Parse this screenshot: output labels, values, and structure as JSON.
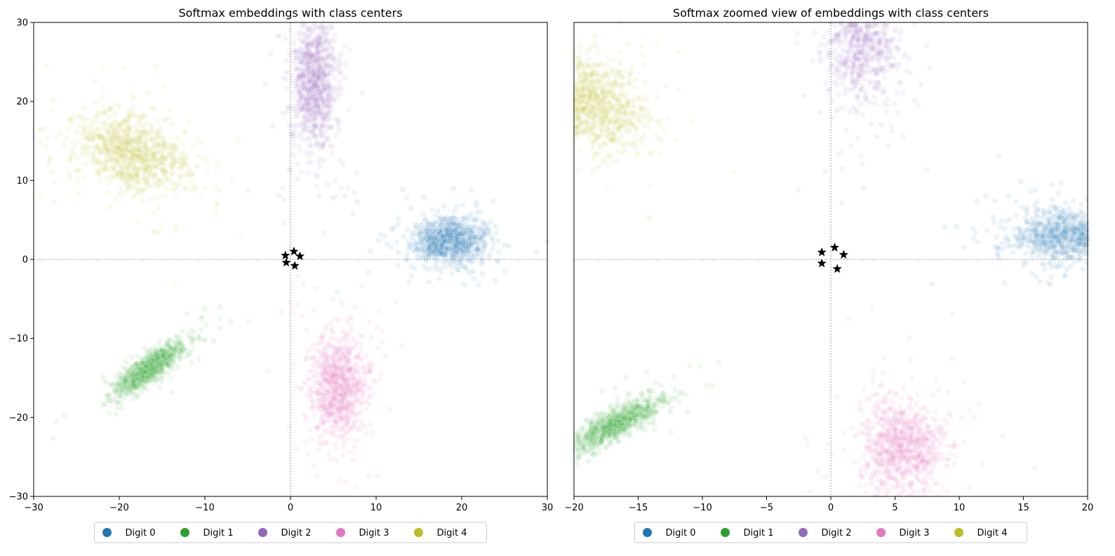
{
  "chart_data": [
    {
      "type": "scatter",
      "title": "Softmax embeddings with class centers",
      "xlim": [
        -30,
        30
      ],
      "ylim": [
        -30,
        30
      ],
      "xticks": [
        -30,
        -20,
        -10,
        0,
        10,
        20,
        30
      ],
      "yticks": [
        -30,
        -20,
        -10,
        0,
        10,
        20,
        30
      ],
      "point_alpha": 0.08,
      "reference_lines": {
        "x": 0,
        "y": 0,
        "style": "dotted"
      },
      "series": [
        {
          "name": "Digit 0",
          "color": "#1f77b4",
          "center": [
            18.5,
            2.3
          ],
          "spread": [
            2.0,
            1.4
          ],
          "corr": 0.0,
          "count": 900
        },
        {
          "name": "Digit 1",
          "color": "#2ca02c",
          "center": [
            -16.5,
            -13.8
          ],
          "spread": [
            1.9,
            1.6
          ],
          "corr": 0.85,
          "count": 900
        },
        {
          "name": "Digit 2",
          "color": "#9467bd",
          "center": [
            2.8,
            22.5
          ],
          "spread": [
            1.3,
            4.2
          ],
          "corr": 0.0,
          "count": 900
        },
        {
          "name": "Digit 3",
          "color": "#e377c2",
          "center": [
            5.5,
            -16.0
          ],
          "spread": [
            1.6,
            3.3
          ],
          "corr": 0.0,
          "count": 900
        },
        {
          "name": "Digit 4",
          "color": "#bcbd22",
          "center": [
            -18.5,
            13.5
          ],
          "spread": [
            3.2,
            2.5
          ],
          "corr": -0.35,
          "count": 900
        }
      ],
      "class_centers": [
        {
          "x": -0.6,
          "y": 0.5
        },
        {
          "x": 0.4,
          "y": 1.0
        },
        {
          "x": 1.1,
          "y": 0.4
        },
        {
          "x": -0.5,
          "y": -0.4
        },
        {
          "x": 0.5,
          "y": -0.8
        }
      ],
      "legend": {
        "placement": "bottom-center",
        "entries": [
          "Digit 0",
          "Digit 1",
          "Digit 2",
          "Digit 3",
          "Digit 4"
        ]
      }
    },
    {
      "type": "scatter",
      "title": "Softmax zoomed view of embeddings with class centers",
      "xlim": [
        -20,
        20
      ],
      "ylim": [
        -30,
        30
      ],
      "xticks": [
        -20,
        -15,
        -10,
        -5,
        0,
        5,
        10,
        15,
        20
      ],
      "yticks": [],
      "point_alpha": 0.08,
      "reference_lines": {
        "x": 0,
        "y": 0,
        "style": "dotted"
      },
      "series": [
        {
          "name": "Digit 0",
          "color": "#1f77b4",
          "center": [
            18.5,
            3.0
          ],
          "spread": [
            2.2,
            1.6
          ],
          "corr": 0.0,
          "count": 900
        },
        {
          "name": "Digit 1",
          "color": "#2ca02c",
          "center": [
            -17.0,
            -21.0
          ],
          "spread": [
            1.8,
            1.7
          ],
          "corr": 0.85,
          "count": 900
        },
        {
          "name": "Digit 2",
          "color": "#9467bd",
          "center": [
            2.5,
            29.0
          ],
          "spread": [
            1.4,
            4.5
          ],
          "corr": 0.0,
          "count": 900
        },
        {
          "name": "Digit 3",
          "color": "#e377c2",
          "center": [
            5.5,
            -24.0
          ],
          "spread": [
            1.6,
            3.2
          ],
          "corr": 0.0,
          "count": 900
        },
        {
          "name": "Digit 4",
          "color": "#bcbd22",
          "center": [
            -18.5,
            20.0
          ],
          "spread": [
            1.9,
            3.0
          ],
          "corr": -0.3,
          "count": 900
        }
      ],
      "class_centers": [
        {
          "x": -0.7,
          "y": 0.9
        },
        {
          "x": 0.3,
          "y": 1.5
        },
        {
          "x": 1.0,
          "y": 0.6
        },
        {
          "x": -0.7,
          "y": -0.5
        },
        {
          "x": 0.5,
          "y": -1.2
        }
      ],
      "legend": {
        "placement": "bottom-center",
        "entries": [
          "Digit 0",
          "Digit 1",
          "Digit 2",
          "Digit 3",
          "Digit 4"
        ]
      }
    }
  ]
}
